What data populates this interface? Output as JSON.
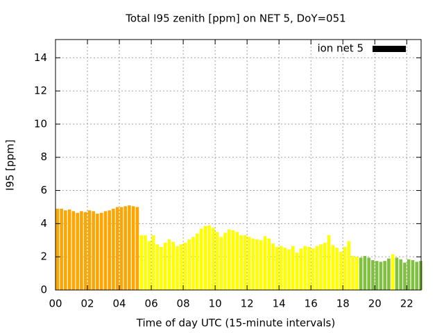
{
  "chart_data": {
    "type": "bar",
    "title": "Total I95 zenith [ppm] on NET 5, DoY=051",
    "x_label": "Time of day UTC (15-minute intervals)",
    "y_label": "I95 [ppm]",
    "x": [
      0,
      0.25,
      0.5,
      0.75,
      1,
      1.25,
      1.5,
      1.75,
      2,
      2.25,
      2.5,
      2.75,
      3,
      3.25,
      3.5,
      3.75,
      4,
      4.25,
      4.5,
      4.75,
      5,
      5.25,
      5.5,
      5.75,
      6,
      6.25,
      6.5,
      6.75,
      7,
      7.25,
      7.5,
      7.75,
      8,
      8.25,
      8.5,
      8.75,
      9,
      9.25,
      9.5,
      9.75,
      10,
      10.25,
      10.5,
      10.75,
      11,
      11.25,
      11.5,
      11.75,
      12,
      12.25,
      12.5,
      12.75,
      13,
      13.25,
      13.5,
      13.75,
      14,
      14.25,
      14.5,
      14.75,
      15,
      15.25,
      15.5,
      15.75,
      16,
      16.25,
      16.5,
      16.75,
      17,
      17.25,
      17.5,
      17.75,
      18,
      18.25,
      18.5,
      18.75,
      19,
      19.25,
      19.5,
      19.75,
      20,
      20.25,
      20.5,
      20.75,
      21,
      21.25,
      21.5,
      21.75,
      22,
      22.25,
      22.5,
      22.75
    ],
    "bar_width": 0.25,
    "series": [
      {
        "name": "ion net 5",
        "color": "#000000",
        "values": [
          4.9,
          4.9,
          4.8,
          4.85,
          4.75,
          4.65,
          4.75,
          4.7,
          4.8,
          4.75,
          4.6,
          4.65,
          4.75,
          4.8,
          4.9,
          5.0,
          5.0,
          5.05,
          5.1,
          5.05,
          5.0,
          3.3,
          3.3,
          2.95,
          3.3,
          2.75,
          2.6,
          2.85,
          3.05,
          2.9,
          2.65,
          2.75,
          2.85,
          3.05,
          3.2,
          3.4,
          3.7,
          3.85,
          3.9,
          3.75,
          3.5,
          3.2,
          3.45,
          3.65,
          3.6,
          3.5,
          3.3,
          3.3,
          3.2,
          3.1,
          3.05,
          3.0,
          3.25,
          3.1,
          2.8,
          2.6,
          2.65,
          2.55,
          2.45,
          2.65,
          2.25,
          2.5,
          2.65,
          2.6,
          2.5,
          2.65,
          2.75,
          2.85,
          3.3,
          2.7,
          2.55,
          2.3,
          2.6,
          2.95,
          2.05,
          2.0,
          1.95,
          2.05,
          1.95,
          1.8,
          1.75,
          1.7,
          1.75,
          1.9,
          2.15,
          1.95,
          1.85,
          1.65,
          1.85,
          1.8,
          1.7,
          1.75
        ],
        "bar_colors": [
          "#ffa500",
          "#ffa500",
          "#ffa500",
          "#ffa500",
          "#ffa500",
          "#ffa500",
          "#ffa500",
          "#ffa500",
          "#ffa500",
          "#ffa500",
          "#ffa500",
          "#ffa500",
          "#ffa500",
          "#ffa500",
          "#ffa500",
          "#ffa500",
          "#ffa500",
          "#ffa500",
          "#ffa500",
          "#ffa500",
          "#ffa500",
          "#ffff00",
          "#ffff00",
          "#ffff00",
          "#ffff00",
          "#ffff00",
          "#ffff00",
          "#ffff00",
          "#ffff00",
          "#ffff00",
          "#ffff00",
          "#ffff00",
          "#ffff00",
          "#ffff00",
          "#ffff00",
          "#ffff00",
          "#ffff00",
          "#ffff00",
          "#ffff00",
          "#ffff00",
          "#ffff00",
          "#ffff00",
          "#ffff00",
          "#ffff00",
          "#ffff00",
          "#ffff00",
          "#ffff00",
          "#ffff00",
          "#ffff00",
          "#ffff00",
          "#ffff00",
          "#ffff00",
          "#ffff00",
          "#ffff00",
          "#ffff00",
          "#ffff00",
          "#ffff00",
          "#ffff00",
          "#ffff00",
          "#ffff00",
          "#ffff00",
          "#ffff00",
          "#ffff00",
          "#ffff00",
          "#ffff00",
          "#ffff00",
          "#ffff00",
          "#ffff00",
          "#ffff00",
          "#ffff00",
          "#ffff00",
          "#ffff00",
          "#ffff00",
          "#ffff00",
          "#ffff00",
          "#ffff00",
          "#80c040",
          "#80c040",
          "#80c040",
          "#80c040",
          "#80c040",
          "#80c040",
          "#80c040",
          "#80c040",
          "#ffff00",
          "#80c040",
          "#80c040",
          "#80c040",
          "#80c040",
          "#80c040",
          "#80c040",
          "#80c040"
        ]
      }
    ],
    "xlim": [
      0,
      22.9
    ],
    "ylim": [
      0,
      15.1
    ],
    "xticks": [
      {
        "value": 0,
        "label": "00"
      },
      {
        "value": 2,
        "label": "02"
      },
      {
        "value": 4,
        "label": "04"
      },
      {
        "value": 6,
        "label": "06"
      },
      {
        "value": 8,
        "label": "08"
      },
      {
        "value": 10,
        "label": "10"
      },
      {
        "value": 12,
        "label": "12"
      },
      {
        "value": 14,
        "label": "14"
      },
      {
        "value": 16,
        "label": "16"
      },
      {
        "value": 18,
        "label": "18"
      },
      {
        "value": 20,
        "label": "20"
      },
      {
        "value": 22,
        "label": "22"
      }
    ],
    "yticks": [
      0,
      2,
      4,
      6,
      8,
      10,
      12,
      14
    ],
    "grid": true,
    "legend": "top-right"
  }
}
